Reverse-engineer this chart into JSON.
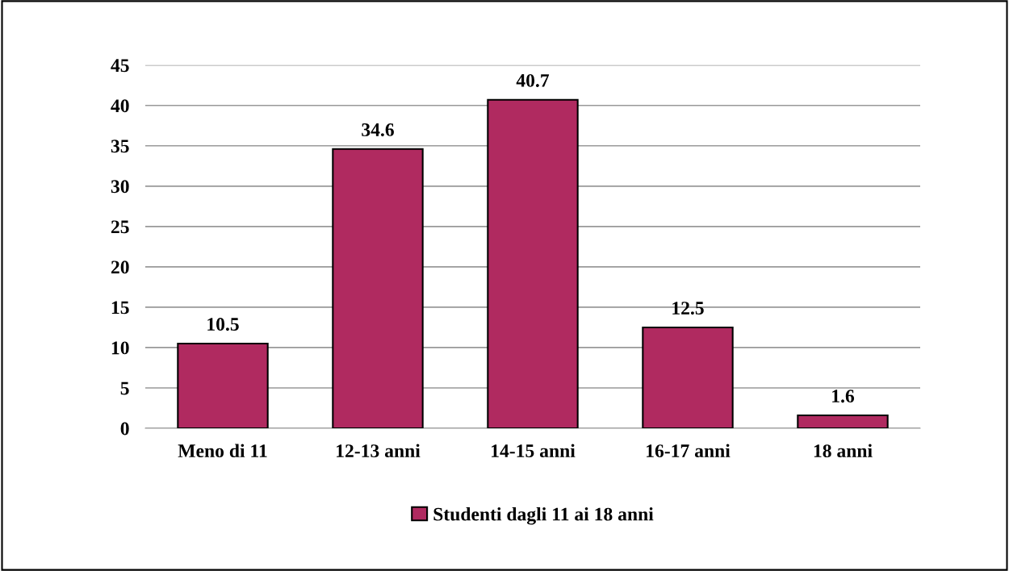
{
  "chart_data": {
    "type": "bar",
    "categories": [
      "Meno di 11",
      "12-13 anni",
      "14-15 anni",
      "16-17 anni",
      "18 anni"
    ],
    "series": [
      {
        "name": "Studenti dagli 11 ai 18 anni",
        "color": "#b02a60",
        "values": [
          10.5,
          34.6,
          40.7,
          12.5,
          1.6
        ]
      }
    ],
    "ylim": [
      0,
      45
    ],
    "yticks": [
      0,
      5,
      10,
      15,
      20,
      25,
      30,
      35,
      40,
      45
    ],
    "grid": "y",
    "legend": "bottom",
    "data_labels": true
  }
}
